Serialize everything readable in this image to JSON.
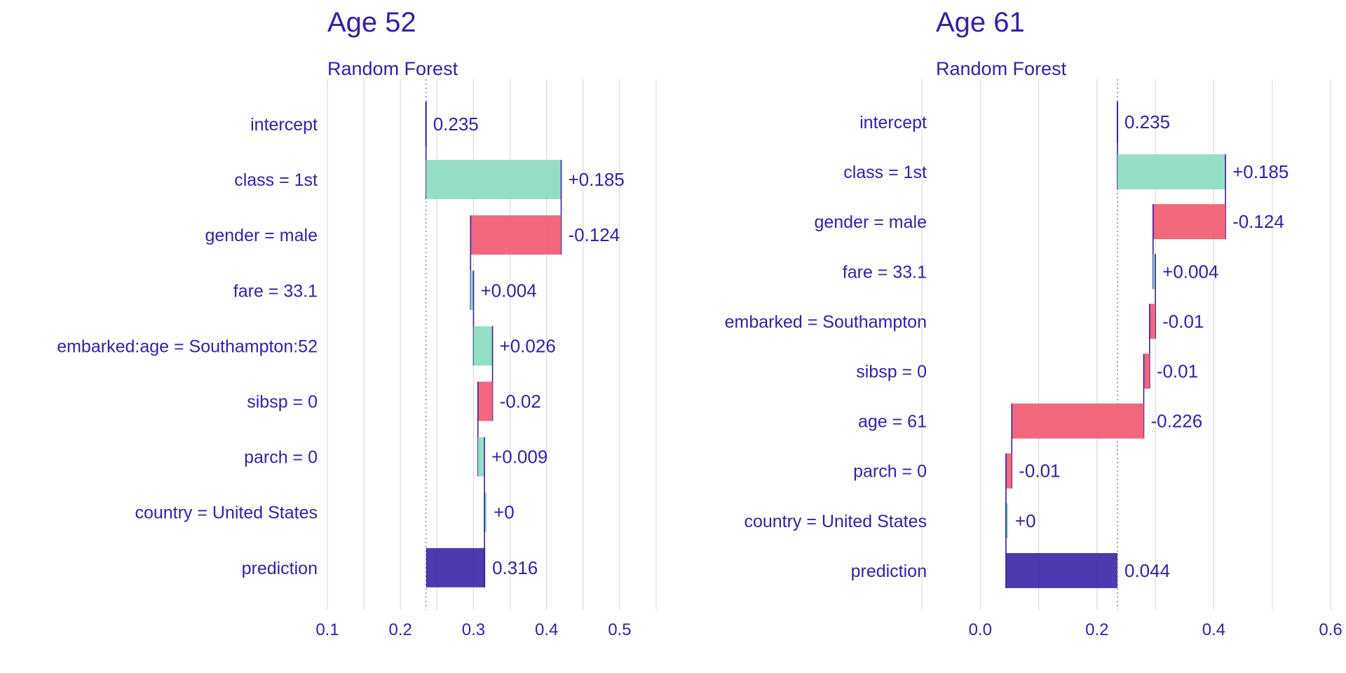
{
  "colors": {
    "text": "#371ea3",
    "positive": "#8bdcbe",
    "negative": "#f05a71",
    "prediction": "#371ea3",
    "grid": "#dcdcdc",
    "baseline": "#8c7ec6"
  },
  "chart_data": [
    {
      "type": "bar",
      "subtype": "waterfall",
      "title": "Age 52",
      "subtitle": "Random Forest",
      "categories": [
        "intercept",
        "class = 1st",
        "gender = male",
        "fare = 33.1",
        "embarked:age = Southampton:52",
        "sibsp = 0",
        "parch = 0",
        "country = United States",
        "prediction"
      ],
      "contributions": [
        0.235,
        0.185,
        -0.124,
        0.004,
        0.026,
        -0.02,
        0.009,
        0.0,
        0.316
      ],
      "value_labels": [
        "0.235",
        "+0.185",
        "-0.124",
        "+0.004",
        "+0.026",
        "-0.02",
        "+0.009",
        "+0",
        "0.316"
      ],
      "baseline": 0.235,
      "prediction": 0.316,
      "xlim": [
        0.1,
        0.55
      ],
      "xticks": [
        0.1,
        0.2,
        0.3,
        0.4,
        0.5
      ],
      "xtick_labels": [
        "0.1",
        "0.2",
        "0.3",
        "0.4",
        "0.5"
      ],
      "xlabel": "",
      "ylabel": "",
      "grid": true
    },
    {
      "type": "bar",
      "subtype": "waterfall",
      "title": "Age 61",
      "subtitle": "Random Forest",
      "categories": [
        "intercept",
        "class = 1st",
        "gender = male",
        "fare = 33.1",
        "embarked = Southampton",
        "sibsp = 0",
        "age = 61",
        "parch = 0",
        "country = United States",
        "prediction"
      ],
      "contributions": [
        0.235,
        0.185,
        -0.124,
        0.004,
        -0.01,
        -0.01,
        -0.226,
        -0.01,
        0.0,
        0.044
      ],
      "value_labels": [
        "0.235",
        "+0.185",
        "-0.124",
        "+0.004",
        "-0.01",
        "-0.01",
        "-0.226",
        "-0.01",
        "+0",
        "0.044"
      ],
      "baseline": 0.235,
      "prediction": 0.044,
      "xlim": [
        -0.1,
        0.6
      ],
      "xticks": [
        0.0,
        0.2,
        0.4,
        0.6
      ],
      "xtick_labels": [
        "0.0",
        "0.2",
        "0.4",
        "0.6"
      ],
      "xlabel": "",
      "ylabel": "",
      "grid": true
    }
  ]
}
